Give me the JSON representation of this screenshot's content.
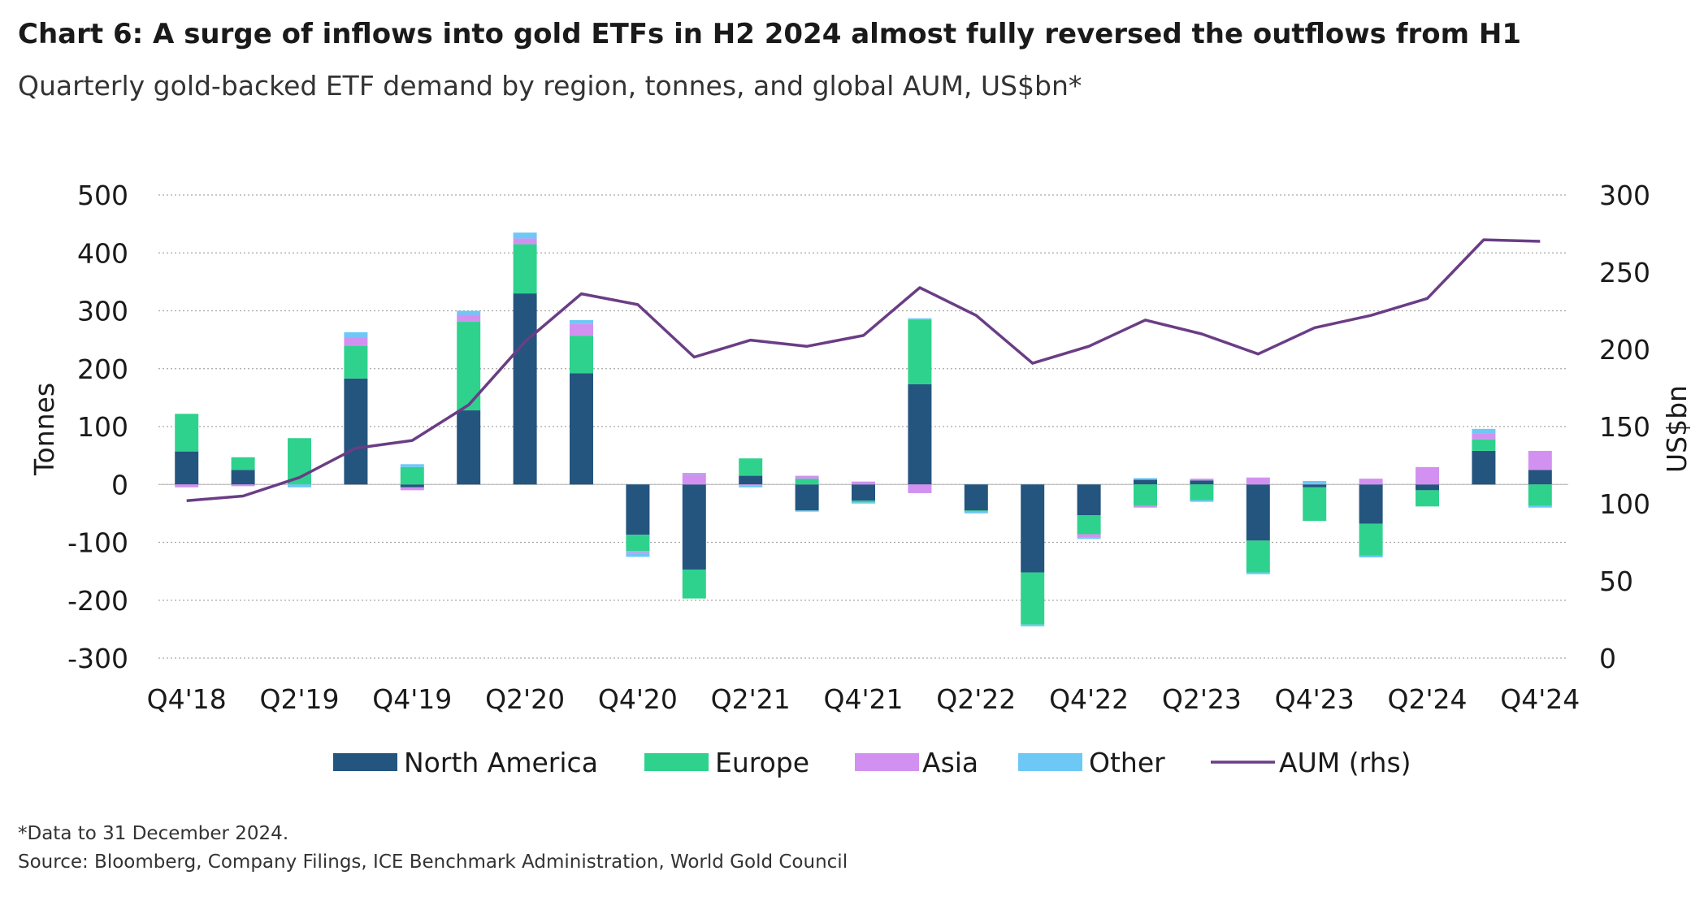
{
  "chart_data": {
    "type": "bar",
    "stacked": true,
    "title": "Chart 6: A surge of inflows into gold ETFs in H2 2024 almost fully reversed the outflows from H1",
    "subtitle": "Quarterly gold-backed ETF demand by region, tonnes, and global AUM, US$bn*",
    "ylabel": "Tonnes",
    "y2label": "US$bn",
    "ylim": [
      -300,
      500
    ],
    "y2lim": [
      0,
      300
    ],
    "yticks": [
      "500",
      "400",
      "300",
      "200",
      "100",
      "0",
      "-100",
      "-200",
      "-300"
    ],
    "y2ticks": [
      "300",
      "250",
      "200",
      "150",
      "100",
      "50",
      "0"
    ],
    "categories": [
      "Q4'18",
      "Q1'19",
      "Q2'19",
      "Q3'19",
      "Q4'19",
      "Q1'20",
      "Q2'20",
      "Q3'20",
      "Q4'20",
      "Q1'21",
      "Q2'21",
      "Q3'21",
      "Q4'21",
      "Q1'22",
      "Q2'22",
      "Q3'22",
      "Q4'22",
      "Q1'23",
      "Q2'23",
      "Q3'23",
      "Q4'23",
      "Q1'24",
      "Q2'24",
      "Q3'24",
      "Q4'24"
    ],
    "xtick_labels": [
      "Q4'18",
      "",
      "Q2'19",
      "",
      "Q4'19",
      "",
      "Q2'20",
      "",
      "Q4'20",
      "",
      "Q2'21",
      "",
      "Q4'21",
      "",
      "Q2'22",
      "",
      "Q4'22",
      "",
      "Q2'23",
      "",
      "Q4'23",
      "",
      "Q2'24",
      "",
      "Q4'24"
    ],
    "series": [
      {
        "name": "North America",
        "color": "#24557f",
        "values": [
          57,
          25,
          0,
          183,
          -5,
          128,
          330,
          192,
          -87,
          -147,
          15,
          -45,
          -28,
          173,
          -45,
          -152,
          -53,
          8,
          7,
          -97,
          -5,
          -68,
          -10,
          58,
          25
        ]
      },
      {
        "name": "Europe",
        "color": "#2fd28d",
        "values": [
          65,
          22,
          80,
          57,
          30,
          153,
          85,
          65,
          -28,
          -50,
          30,
          10,
          -3,
          112,
          -2,
          -90,
          -33,
          -37,
          -27,
          -55,
          -58,
          -55,
          -28,
          20,
          -37
        ]
      },
      {
        "name": "Asia",
        "color": "#d291f0",
        "values": [
          -5,
          -3,
          0,
          13,
          -5,
          12,
          10,
          20,
          -3,
          18,
          -2,
          5,
          5,
          -15,
          0,
          0,
          -5,
          -3,
          3,
          12,
          0,
          10,
          30,
          10,
          33
        ]
      },
      {
        "name": "Other",
        "color": "#6ec8f5",
        "values": [
          0,
          0,
          -5,
          10,
          5,
          7,
          10,
          7,
          -7,
          2,
          -3,
          -2,
          -2,
          2,
          -3,
          -3,
          -3,
          3,
          -3,
          -3,
          6,
          -3,
          0,
          8,
          -3
        ]
      }
    ],
    "line": {
      "name": "AUM (rhs)",
      "color": "#6a3d85",
      "axis": "rhs",
      "values": [
        102,
        105,
        117,
        136,
        141,
        164,
        205,
        236,
        229,
        195,
        206,
        202,
        209,
        240,
        222,
        191,
        202,
        219,
        210,
        197,
        214,
        222,
        233,
        271,
        270
      ]
    },
    "legend": [
      "North America",
      "Europe",
      "Asia",
      "Other",
      "AUM (rhs)"
    ],
    "legend_position": "bottom",
    "grid": true
  },
  "notes": {
    "footnote": "*Data to 31 December 2024.",
    "source": "Source: Bloomberg, Company Filings, ICE Benchmark Administration, World Gold Council"
  }
}
